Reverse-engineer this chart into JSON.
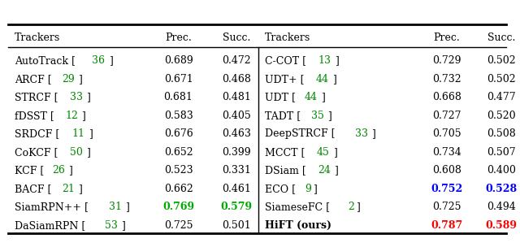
{
  "left_rows": [
    [
      "AutoTrack",
      "36",
      "0.689",
      "0.472",
      "black",
      "black"
    ],
    [
      "ARCF",
      "29",
      "0.671",
      "0.468",
      "black",
      "black"
    ],
    [
      "STRCF",
      "33",
      "0.681",
      "0.481",
      "black",
      "black"
    ],
    [
      "fDSST",
      "12",
      "0.583",
      "0.405",
      "black",
      "black"
    ],
    [
      "SRDCF",
      "11",
      "0.676",
      "0.463",
      "black",
      "black"
    ],
    [
      "CoKCF",
      "50",
      "0.652",
      "0.399",
      "black",
      "black"
    ],
    [
      "KCF",
      "26",
      "0.523",
      "0.331",
      "black",
      "black"
    ],
    [
      "BACF",
      "21",
      "0.662",
      "0.461",
      "black",
      "black"
    ],
    [
      "SiamRPN++",
      "31",
      "0.769",
      "0.579",
      "#00aa00",
      "#00aa00"
    ],
    [
      "DaSiamRPN",
      "53",
      "0.725",
      "0.501",
      "black",
      "black"
    ]
  ],
  "right_rows": [
    [
      "C-COT",
      "13",
      "0.729",
      "0.502",
      "black",
      "black",
      false
    ],
    [
      "UDT+",
      "44",
      "0.732",
      "0.502",
      "black",
      "black",
      false
    ],
    [
      "UDT",
      "44",
      "0.668",
      "0.477",
      "black",
      "black",
      false
    ],
    [
      "TADT",
      "35",
      "0.727",
      "0.520",
      "black",
      "black",
      false
    ],
    [
      "DeepSTRCF",
      "33",
      "0.705",
      "0.508",
      "black",
      "black",
      false
    ],
    [
      "MCCT",
      "45",
      "0.734",
      "0.507",
      "black",
      "black",
      false
    ],
    [
      "DSiam",
      "24",
      "0.608",
      "0.400",
      "black",
      "black",
      false
    ],
    [
      "ECO",
      "9",
      "0.752",
      "0.528",
      "blue",
      "blue",
      false
    ],
    [
      "SiameseFC",
      "2",
      "0.725",
      "0.494",
      "black",
      "black",
      false
    ],
    [
      "HiFT (ours)",
      "",
      "0.787",
      "0.589",
      "red",
      "red",
      true
    ]
  ],
  "ref_color": "#008800",
  "bg_color": "#ffffff",
  "font_size": 9.0,
  "fig_width": 6.4,
  "fig_height": 2.99,
  "dpi": 100
}
